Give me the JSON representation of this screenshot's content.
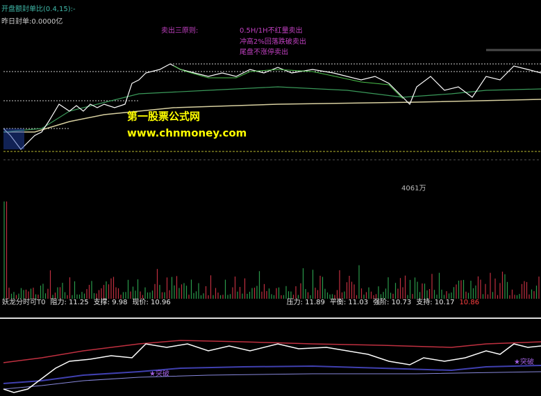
{
  "header": {
    "indicator": "开盘额封单比(0.4,15):-",
    "yesterday": "昨日封单:0.0000亿"
  },
  "notes": {
    "title": "卖出三原则:",
    "rules": [
      "0.5H/1H不红量卖出",
      "冲高2%回落跌破卖出",
      "尾盘不涨停卖出"
    ]
  },
  "watermark": {
    "name": "第一股票公式网",
    "url": "www.chnmoney.com"
  },
  "volume_label": "4061万",
  "status_bar": {
    "name": "妖龙分时可T0",
    "items": [
      "阻力: 11.25",
      "支撑: 9.98",
      "现价: 10.96",
      "压力: 11.89",
      "平衡: 11.03",
      "强阶: 10.73",
      "支持: 10.17"
    ],
    "last": "10.86"
  },
  "signals": [
    "★突破",
    "★突破"
  ]
}
